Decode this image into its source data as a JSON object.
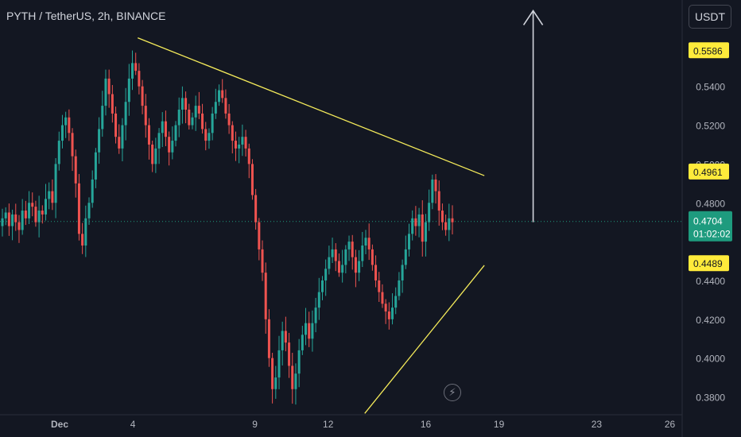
{
  "header": {
    "title": "PYTH / TetherUS, 2h, BINANCE"
  },
  "toolbar": {
    "currency_label": "USDT",
    "alert_icon": "lightning-bolt-icon"
  },
  "colors": {
    "background": "#131722",
    "up": "#26a69a",
    "down": "#ef5350",
    "trendline": "#f5eb5a",
    "highlight_label": "#ffeb3b",
    "current_price": "#1e9b7e",
    "arrow": "#d1d4dc"
  },
  "chart_data": {
    "type": "candlestick",
    "symbol": "PYTH / TetherUS",
    "interval": "2h",
    "exchange": "BINANCE",
    "y_ticks": [
      "0.3800",
      "0.4000",
      "0.4200",
      "0.4400",
      "0.4800",
      "0.5200",
      "0.5400"
    ],
    "x_ticks": [
      {
        "label": "Dec",
        "day": 0
      },
      {
        "label": "4",
        "day": 3
      },
      {
        "label": "9",
        "day": 8
      },
      {
        "label": "12",
        "day": 11
      },
      {
        "label": "16",
        "day": 15
      },
      {
        "label": "19",
        "day": 18
      },
      {
        "label": "23",
        "day": 22
      },
      {
        "label": "26",
        "day": 25
      }
    ],
    "ylim": [
      0.3708,
      0.5845
    ],
    "price_labels": [
      {
        "value": 0.5586,
        "text": "0.5586",
        "style": "highlight"
      },
      {
        "value": 0.4961,
        "text": "0.4961",
        "style": "highlight"
      },
      {
        "value": 0.4704,
        "text": "0.4704",
        "countdown": "01:02:02",
        "style": "current"
      },
      {
        "value": 0.4489,
        "text": "0.4489",
        "style": "highlight"
      }
    ],
    "partial_tick_labels": [
      "0.5600",
      "0.5000"
    ],
    "trendlines": [
      {
        "name": "descending resistance",
        "from": {
          "day": 3.2,
          "price": 0.565
        },
        "to": {
          "day": 17.4,
          "price": 0.494
        }
      },
      {
        "name": "ascending support",
        "from": {
          "day": 12.5,
          "price": 0.3715
        },
        "to": {
          "day": 17.4,
          "price": 0.4478
        }
      }
    ],
    "arrow": {
      "day": 19.4,
      "from_price": 0.47,
      "to_price": 0.579,
      "direction": "up"
    },
    "current_price": 0.4704,
    "closes": [
      0.472,
      0.475,
      0.468,
      0.474,
      0.47,
      0.466,
      0.476,
      0.472,
      0.48,
      0.478,
      0.47,
      0.476,
      0.474,
      0.482,
      0.486,
      0.48,
      0.5,
      0.512,
      0.52,
      0.524,
      0.516,
      0.504,
      0.49,
      0.464,
      0.458,
      0.472,
      0.48,
      0.492,
      0.506,
      0.518,
      0.53,
      0.544,
      0.536,
      0.526,
      0.514,
      0.508,
      0.52,
      0.532,
      0.544,
      0.552,
      0.548,
      0.54,
      0.53,
      0.52,
      0.51,
      0.5,
      0.508,
      0.516,
      0.522,
      0.514,
      0.506,
      0.512,
      0.52,
      0.528,
      0.534,
      0.528,
      0.52,
      0.524,
      0.53,
      0.526,
      0.518,
      0.512,
      0.516,
      0.526,
      0.532,
      0.538,
      0.534,
      0.526,
      0.52,
      0.512,
      0.508,
      0.51,
      0.514,
      0.508,
      0.5,
      0.484,
      0.47,
      0.456,
      0.444,
      0.42,
      0.4,
      0.384,
      0.39,
      0.404,
      0.414,
      0.408,
      0.396,
      0.384,
      0.392,
      0.404,
      0.412,
      0.418,
      0.41,
      0.418,
      0.426,
      0.434,
      0.44,
      0.446,
      0.452,
      0.456,
      0.45,
      0.444,
      0.448,
      0.456,
      0.46,
      0.452,
      0.444,
      0.45,
      0.458,
      0.462,
      0.456,
      0.448,
      0.44,
      0.434,
      0.428,
      0.424,
      0.42,
      0.426,
      0.432,
      0.44,
      0.448,
      0.456,
      0.464,
      0.472,
      0.468,
      0.474,
      0.46,
      0.47,
      0.48,
      0.492,
      0.486,
      0.476,
      0.47,
      0.466,
      0.472,
      0.47
    ]
  }
}
